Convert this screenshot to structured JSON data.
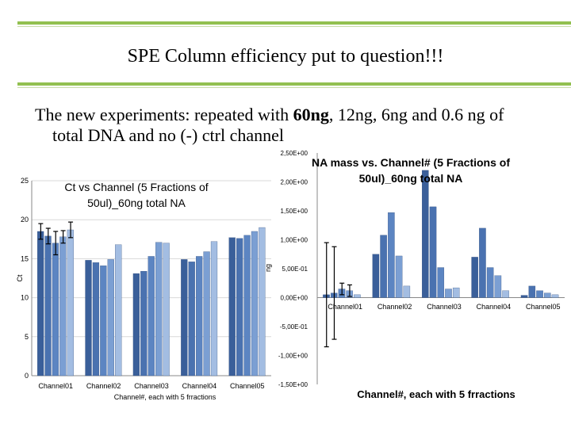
{
  "slide": {
    "title": "SPE Column efficiency put to question!!!",
    "subtitle_pre": "The new experiments: repeated with ",
    "subtitle_bold": "60ng",
    "subtitle_post": ", 12ng, 6ng and 0.6 ng of",
    "subtitle_line2": "total DNA and no (-) ctrl channel"
  },
  "colors": {
    "accent_rule": "#92c050",
    "series": [
      "#3a5f9a",
      "#4a72b0",
      "#5c85c2",
      "#7b9fd3",
      "#a3bde2"
    ]
  },
  "chart_data": [
    {
      "type": "bar",
      "title": "Ct vs Channel (5 Fractions of 50ul)_60ng total NA",
      "title_lines": [
        "Ct vs Channel (5 Fractions of",
        "50ul)_60ng total NA"
      ],
      "xlabel": "Channel#, each with 5 frractions",
      "ylabel": "Ct",
      "categories": [
        "Channel01",
        "Channel02",
        "Channel03",
        "Channel04",
        "Channel05"
      ],
      "ylim": [
        0,
        25
      ],
      "yticks": [
        "0",
        "5",
        "10",
        "15",
        "20",
        "25"
      ],
      "grid": true,
      "legend": "none",
      "series": [
        {
          "values": [
            18.5,
            14.8,
            13.1,
            14.9,
            17.7
          ]
        },
        {
          "values": [
            17.9,
            14.5,
            13.4,
            14.6,
            17.6
          ]
        },
        {
          "values": [
            17.0,
            14.1,
            15.3,
            15.3,
            18.0
          ]
        },
        {
          "values": [
            17.8,
            14.9,
            17.1,
            15.9,
            18.5
          ]
        },
        {
          "values": [
            18.7,
            16.8,
            17.0,
            17.2,
            19.0
          ]
        }
      ],
      "error_bars": [
        {
          "values": [
            1.0,
            0,
            0,
            0,
            0
          ]
        },
        {
          "values": [
            1.0,
            0,
            0,
            0,
            0
          ]
        },
        {
          "values": [
            1.5,
            0,
            0,
            0,
            0
          ]
        },
        {
          "values": [
            0.8,
            0,
            0,
            0,
            0
          ]
        },
        {
          "values": [
            1.0,
            0,
            0,
            0,
            0
          ]
        }
      ]
    },
    {
      "type": "bar",
      "title": "NA mass vs. Channel# (5 Fractions of 50ul)_60ng total NA",
      "title_lines": [
        "NA mass vs. Channel# (5 Fractions of",
        "50ul)_60ng total NA"
      ],
      "xlabel": "Channel#, each with 5 frractions",
      "ylabel": "ng",
      "categories": [
        "Channel01",
        "Channel02",
        "Channel03",
        "Channel04",
        "Channel05"
      ],
      "ylim": [
        -1.5,
        2.5
      ],
      "yticks": [
        "-1,50E+00",
        "-1,00E+00",
        "-5,00E-01",
        "0,00E+00",
        "5,00E-01",
        "1,00E+00",
        "1,50E+00",
        "2,00E+00",
        "2,50E+00"
      ],
      "grid": false,
      "legend": "none",
      "series": [
        {
          "values": [
            0.05,
            0.75,
            2.2,
            0.7,
            0.04
          ]
        },
        {
          "values": [
            0.08,
            1.08,
            1.57,
            1.2,
            0.2
          ]
        },
        {
          "values": [
            0.15,
            1.47,
            0.52,
            0.52,
            0.12
          ]
        },
        {
          "values": [
            0.12,
            0.72,
            0.15,
            0.38,
            0.08
          ]
        },
        {
          "values": [
            0.05,
            0.2,
            0.17,
            0.12,
            0.05
          ]
        }
      ],
      "error_bars": [
        {
          "values": [
            0.9,
            0,
            0,
            0,
            0
          ]
        },
        {
          "values": [
            0.8,
            0,
            0,
            0,
            0
          ]
        },
        {
          "values": [
            0.1,
            0,
            0,
            0,
            0
          ]
        },
        {
          "values": [
            0.1,
            0,
            0,
            0,
            0
          ]
        },
        {
          "values": [
            0,
            0,
            0,
            0,
            0
          ]
        }
      ]
    }
  ]
}
